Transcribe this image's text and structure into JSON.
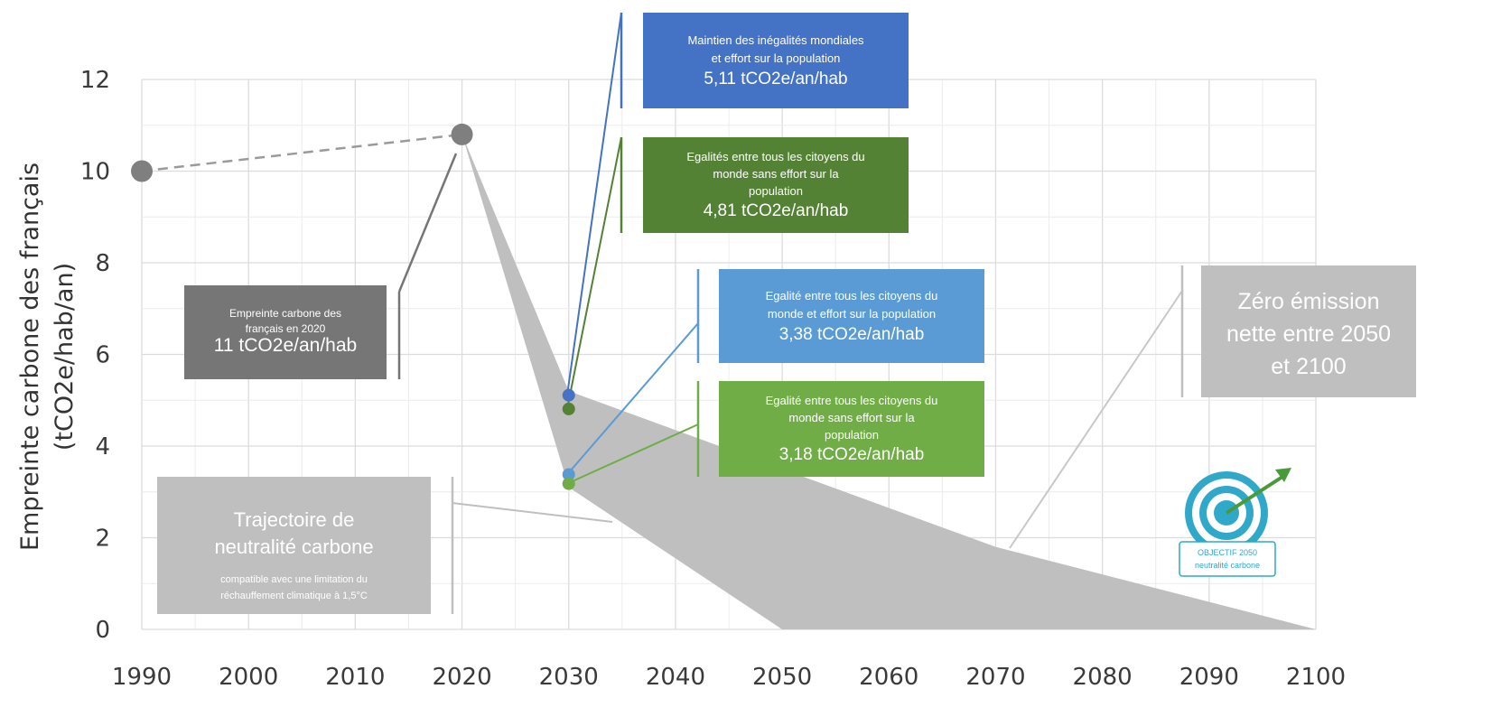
{
  "chart_data": {
    "type": "line",
    "ylabel_line1": "Empreinte carbone des français",
    "ylabel_line2": "(tCO2e/hab/an)",
    "xlim": [
      1990,
      2100
    ],
    "ylim": [
      0,
      12
    ],
    "x_ticks": [
      1990,
      2000,
      2010,
      2020,
      2030,
      2040,
      2050,
      2060,
      2070,
      2080,
      2090,
      2100
    ],
    "y_ticks": [
      0,
      2,
      4,
      6,
      8,
      10,
      12
    ],
    "grid": true,
    "historical": {
      "points": [
        {
          "x": 1990,
          "y": 10.0
        },
        {
          "x": 2020,
          "y": 10.8
        }
      ],
      "color": "#7f7f7f"
    },
    "neutrality_band": {
      "upper": [
        {
          "x": 2020,
          "y": 10.8
        },
        {
          "x": 2030,
          "y": 5.2
        },
        {
          "x": 2070,
          "y": 1.8
        },
        {
          "x": 2100,
          "y": 0
        }
      ],
      "lower": [
        {
          "x": 2020,
          "y": 10.8
        },
        {
          "x": 2030,
          "y": 3.1
        },
        {
          "x": 2050,
          "y": 0
        },
        {
          "x": 2100,
          "y": 0
        }
      ],
      "color": "#bfbfbf"
    },
    "scenario_points": [
      {
        "x": 2030,
        "y": 5.11,
        "color": "#4472c4"
      },
      {
        "x": 2030,
        "y": 4.81,
        "color": "#548235"
      },
      {
        "x": 2030,
        "y": 3.38,
        "color": "#5b9bd5"
      },
      {
        "x": 2030,
        "y": 3.18,
        "color": "#70ad47"
      }
    ],
    "annotations": [
      {
        "id": "ann-2020",
        "lines": [
          "Empreinte carbone des",
          "français en 2020"
        ],
        "value": "11 tCO2e/an/hab",
        "color": "#767676"
      },
      {
        "id": "ann-blue-dark",
        "lines": [
          "Maintien des inégalités mondiales",
          "et effort sur la population"
        ],
        "value": "5,11 tCO2e/an/hab",
        "color": "#4472c4"
      },
      {
        "id": "ann-green-dark",
        "lines": [
          "Egalités entre tous les citoyens du",
          "monde sans effort sur la",
          "population"
        ],
        "value": "4,81 tCO2e/an/hab",
        "color": "#548235"
      },
      {
        "id": "ann-blue-light",
        "lines": [
          "Egalité entre tous les citoyens du",
          "monde et effort sur la population"
        ],
        "value": "3,38 tCO2e/an/hab",
        "color": "#5b9bd5"
      },
      {
        "id": "ann-green-light",
        "lines": [
          "Egalité entre tous les citoyens du",
          "monde sans effort sur la",
          "population"
        ],
        "value": "3,18 tCO2e/an/hab",
        "color": "#70ad47"
      },
      {
        "id": "ann-trajectory",
        "lines": [
          "Trajectoire de",
          "neutralité carbone"
        ],
        "value": "compatible avec une limitation du réchauffement climatique à 1,5°C",
        "color": "#bfbfbf"
      },
      {
        "id": "ann-zero",
        "lines": [
          "Zéro émission",
          "nette entre 2050",
          "et 2100"
        ],
        "value": "",
        "color": "#bfbfbf"
      }
    ],
    "logo_text": [
      "OBJECTIF 2050",
      "neutralité carbone"
    ]
  }
}
